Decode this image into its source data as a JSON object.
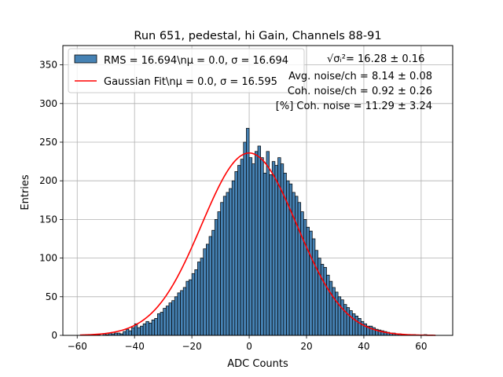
{
  "chart_data": {
    "type": "bar",
    "title": "Run 651, pedestal, hi Gain, Channels 88-91",
    "xlabel": "ADC Counts",
    "ylabel": "Entries",
    "xlim": [
      -65,
      71
    ],
    "ylim": [
      0,
      375
    ],
    "xticks": [
      -60,
      -40,
      -20,
      0,
      20,
      40,
      60
    ],
    "yticks": [
      0,
      50,
      100,
      150,
      200,
      250,
      300,
      350
    ],
    "grid": true,
    "bin_width": 1,
    "bin_start": -59,
    "values": [
      0,
      0,
      0,
      0,
      1,
      0,
      1,
      0,
      2,
      1,
      3,
      2,
      3,
      3,
      2,
      5,
      8,
      6,
      10,
      15,
      10,
      12,
      15,
      18,
      16,
      20,
      22,
      28,
      30,
      35,
      38,
      42,
      45,
      50,
      55,
      58,
      62,
      70,
      72,
      80,
      85,
      95,
      100,
      112,
      118,
      128,
      136,
      150,
      160,
      172,
      180,
      185,
      190,
      200,
      212,
      220,
      228,
      250,
      268,
      230,
      222,
      238,
      245,
      230,
      210,
      238,
      208,
      225,
      220,
      230,
      222,
      210,
      200,
      196,
      185,
      180,
      172,
      160,
      150,
      140,
      135,
      125,
      110,
      100,
      92,
      88,
      78,
      70,
      62,
      56,
      50,
      46,
      40,
      36,
      32,
      28,
      25,
      22,
      18,
      15,
      12,
      12,
      10,
      8,
      7,
      6,
      5,
      4,
      3,
      3,
      2,
      2,
      1,
      1,
      1,
      0,
      1,
      0,
      0,
      0,
      1
    ],
    "series": [
      {
        "name": "RMS = 16.694\\nμ = 0.0, σ = 16.694",
        "type": "hist",
        "color": "#4682b4",
        "edge": "#000000"
      },
      {
        "name": "Gaussian Fit\\nμ = 0.0, σ = 16.595",
        "type": "line",
        "color": "#ff0000",
        "mu": 0.0,
        "sigma": 16.595,
        "amplitude": 236,
        "x_range": [
          -59,
          65
        ]
      }
    ],
    "legend_position": "upper-left",
    "annotations": [
      {
        "label": "√σᵢ²",
        "text": " = 16.28 ± 0.16"
      },
      {
        "text": "Avg. noise/ch = 8.14 ± 0.08"
      },
      {
        "text": "Coh. noise/ch = 0.92 ± 0.26"
      },
      {
        "text": "[%] Coh. noise = 11.29 ± 3.24"
      }
    ]
  }
}
